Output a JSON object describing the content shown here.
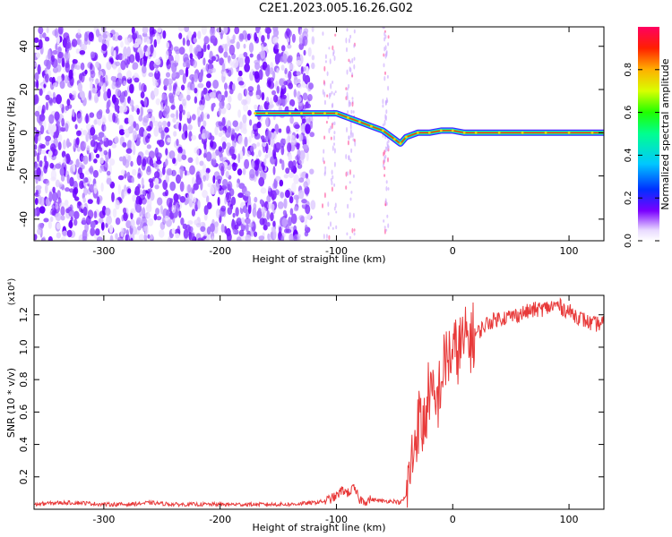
{
  "title": "C2E1.2023.005.16.26.G02",
  "colors": {
    "snr_line": "#e83a3a",
    "ridge_line": "#ff2a1a",
    "scatter": "#7a1bff",
    "axis": "#000000"
  },
  "chart_data": [
    {
      "type": "heatmap",
      "xlabel": "Height of straight line (km)",
      "ylabel": "Frequency (Hz)",
      "xlim": [
        -360,
        130
      ],
      "ylim": [
        -50,
        49
      ],
      "xticks": [
        -300,
        -200,
        -100,
        0,
        100
      ],
      "yticks": [
        -40,
        -20,
        0,
        20,
        40
      ],
      "ridge": {
        "x": [
          -170,
          -160,
          -140,
          -130,
          -120,
          -110,
          -100,
          -90,
          -80,
          -70,
          -60,
          -50,
          -45,
          -40,
          -30,
          -20,
          -10,
          0,
          10,
          20,
          40,
          60,
          80,
          100,
          120,
          130
        ],
        "y": [
          9,
          9,
          9,
          9,
          9,
          9,
          9,
          7,
          5,
          3,
          1,
          -3,
          -5,
          -2,
          0,
          0,
          1,
          1,
          0,
          0,
          0,
          0,
          0,
          0,
          0,
          0
        ]
      },
      "colorbar": {
        "label": "Normalized spectral amplitude",
        "range": [
          0,
          1
        ],
        "ticks": [
          0.0,
          0.2,
          0.4,
          0.6,
          0.8
        ],
        "tick_labels": [
          "0.0",
          "0.2",
          "0.4",
          "0.6",
          "0.8"
        ]
      }
    },
    {
      "type": "line",
      "xlabel": "Height of straight line (km)",
      "ylabel": "SNR (10 * v/v)",
      "ylabel_units": "(x10⁴)",
      "xlim": [
        -360,
        130
      ],
      "ylim": [
        0,
        1.32
      ],
      "xticks": [
        -300,
        -200,
        -100,
        0,
        100
      ],
      "yticks": [
        0.2,
        0.4,
        0.6,
        0.8,
        1.0,
        1.2
      ],
      "ytick_labels": [
        "0.2",
        "0.4",
        "0.6",
        "0.8",
        "1.0",
        "1.2"
      ],
      "series": [
        {
          "x": [
            -360,
            -340,
            -320,
            -300,
            -280,
            -260,
            -240,
            -220,
            -200,
            -180,
            -160,
            -140,
            -120,
            -110,
            -100,
            -95,
            -90,
            -85,
            -80,
            -75,
            -70,
            -60,
            -50,
            -45,
            -40,
            -35,
            -30,
            -25,
            -20,
            -15,
            -10,
            -5,
            0,
            10,
            20,
            30,
            40,
            50,
            60,
            70,
            80,
            90,
            100,
            110,
            120,
            130
          ],
          "y": [
            0.03,
            0.04,
            0.04,
            0.03,
            0.03,
            0.04,
            0.03,
            0.03,
            0.03,
            0.03,
            0.03,
            0.03,
            0.04,
            0.05,
            0.08,
            0.12,
            0.1,
            0.13,
            0.06,
            0.05,
            0.06,
            0.05,
            0.05,
            0.04,
            0.08,
            0.3,
            0.55,
            0.5,
            0.75,
            0.6,
            0.8,
            0.95,
            0.95,
            1.03,
            1.08,
            1.15,
            1.18,
            1.19,
            1.21,
            1.23,
            1.24,
            1.26,
            1.22,
            1.18,
            1.14,
            1.15
          ]
        }
      ]
    }
  ]
}
